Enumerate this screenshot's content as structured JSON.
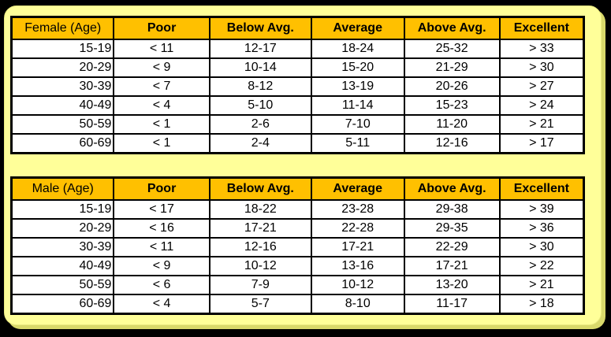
{
  "colors": {
    "page_bg": "#000000",
    "panel_bg": "#FFFF99",
    "panel_shadow": "#D9D96B",
    "header_bg": "#FFC000",
    "cell_bg": "#FFFFFF",
    "border": "#000000",
    "text": "#000000"
  },
  "chart_data": [
    {
      "type": "table",
      "title": "Female (Age)",
      "columns": [
        "Female (Age)",
        "Poor",
        "Below Avg.",
        "Average",
        "Above Avg.",
        "Excellent"
      ],
      "rows": [
        [
          "15-19",
          "< 11",
          "12-17",
          "18-24",
          "25-32",
          "> 33"
        ],
        [
          "20-29",
          "< 9",
          "10-14",
          "15-20",
          "21-29",
          "> 30"
        ],
        [
          "30-39",
          "< 7",
          "8-12",
          "13-19",
          "20-26",
          "> 27"
        ],
        [
          "40-49",
          "< 4",
          "5-10",
          "11-14",
          "15-23",
          "> 24"
        ],
        [
          "50-59",
          "< 1",
          "2-6",
          "7-10",
          "11-20",
          "> 21"
        ],
        [
          "60-69",
          "< 1",
          "2-4",
          "5-11",
          "12-16",
          "> 17"
        ]
      ]
    },
    {
      "type": "table",
      "title": "Male (Age)",
      "columns": [
        "Male (Age)",
        "Poor",
        "Below Avg.",
        "Average",
        "Above Avg.",
        "Excellent"
      ],
      "rows": [
        [
          "15-19",
          "< 17",
          "18-22",
          "23-28",
          "29-38",
          "> 39"
        ],
        [
          "20-29",
          "< 16",
          "17-21",
          "22-28",
          "29-35",
          "> 36"
        ],
        [
          "30-39",
          "< 11",
          "12-16",
          "17-21",
          "22-29",
          "> 30"
        ],
        [
          "40-49",
          "< 9",
          "10-12",
          "13-16",
          "17-21",
          "> 22"
        ],
        [
          "50-59",
          "< 6",
          "7-9",
          "10-12",
          "13-20",
          "> 21"
        ],
        [
          "60-69",
          "< 4",
          "5-7",
          "8-10",
          "11-17",
          "> 18"
        ]
      ]
    }
  ],
  "layout_hints": {
    "column_width_percents": [
      17.9,
      16.7,
      17.8,
      16.2,
      16.7,
      14.7
    ]
  }
}
